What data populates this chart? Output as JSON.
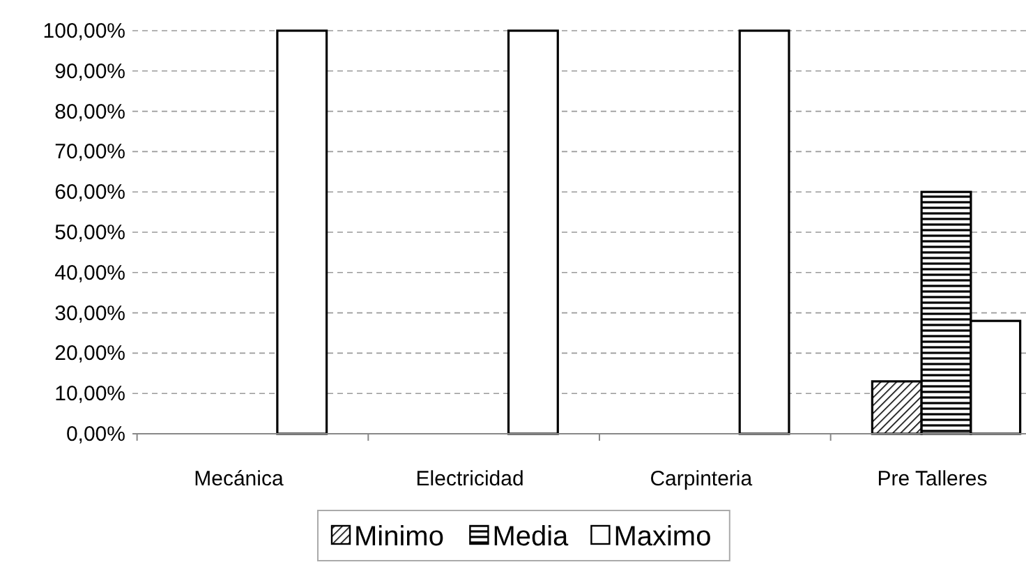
{
  "chart_data": {
    "type": "bar",
    "categories": [
      "Mecánica",
      "Electricidad",
      "Carpinteria",
      "Pre Talleres"
    ],
    "series": [
      {
        "name": "Minimo",
        "color": "#000000",
        "values": [
          0,
          0,
          0,
          13
        ]
      },
      {
        "name": "Media",
        "color": "#000000",
        "values": [
          0,
          0,
          0,
          60
        ]
      },
      {
        "name": "Maximo",
        "color": "#ffffff",
        "values": [
          100,
          100,
          100,
          28
        ]
      }
    ],
    "ylim": [
      0,
      100
    ],
    "yticks": [
      {
        "value": 0,
        "label": "0,00%"
      },
      {
        "value": 10,
        "label": "10,00%"
      },
      {
        "value": 20,
        "label": "20,00%"
      },
      {
        "value": 30,
        "label": "30,00%"
      },
      {
        "value": 40,
        "label": "40,00%"
      },
      {
        "value": 50,
        "label": "50,00%"
      },
      {
        "value": 60,
        "label": "60,00%"
      },
      {
        "value": 70,
        "label": "70,00%"
      },
      {
        "value": 80,
        "label": "80,00%"
      },
      {
        "value": 90,
        "label": "90,00%"
      },
      {
        "value": 100,
        "label": "100,00%"
      }
    ],
    "grid": "y",
    "legend": "bottom"
  }
}
